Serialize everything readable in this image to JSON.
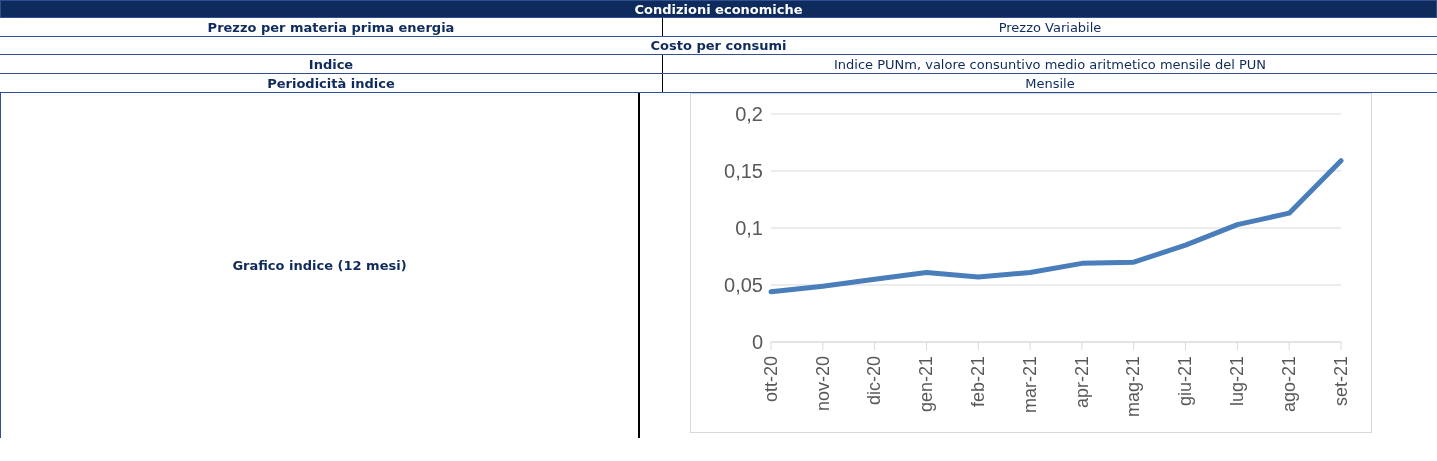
{
  "chart_data": {
    "type": "line",
    "title": "Condizioni economiche",
    "annotations": [
      "Prezzo per materia prima energia",
      "Prezzo Variabile",
      "Costo per consumi",
      "Indice",
      "Indice PUNm, valore consuntivo medio aritmetico mensile del PUN",
      "Periodicità indice",
      "Mensile",
      "Grafico indice (12 mesi)"
    ],
    "categories": [
      "ott-20",
      "nov-20",
      "dic-20",
      "gen-21",
      "feb-21",
      "mar-21",
      "apr-21",
      "mag-21",
      "giu-21",
      "lug-21",
      "ago-21",
      "set-21"
    ],
    "series": [
      {
        "color": "#4a7ebb",
        "values": [
          0.044,
          0.049,
          0.055,
          0.061,
          0.057,
          0.061,
          0.069,
          0.07,
          0.085,
          0.103,
          0.113,
          0.159
        ]
      }
    ],
    "ylim": [
      0,
      0.2
    ],
    "yticks": [
      0,
      {
        "value": 0.05,
        "label": "0,05"
      },
      {
        "value": 0.1,
        "label": "0,1"
      },
      {
        "value": 0.15,
        "label": "0,15"
      },
      {
        "value": 0.2,
        "label": "0,2"
      }
    ],
    "grid": "y",
    "marker": "none",
    "line_style": "solid",
    "legend": false
  }
}
